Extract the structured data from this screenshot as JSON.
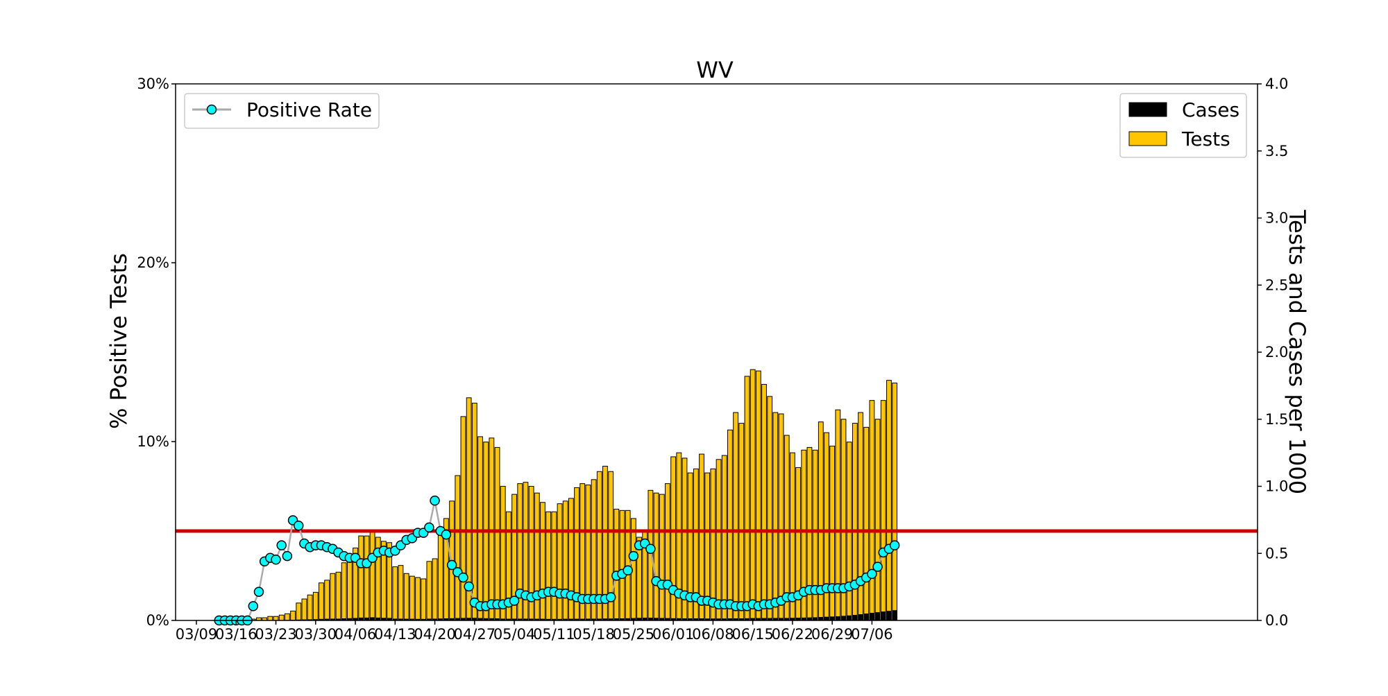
{
  "chart_data": {
    "type": "bar",
    "title": "WV",
    "ylabel_left": "% Positive Tests",
    "ylabel_right": "Tests and Cases per 1000",
    "ylim_left": [
      0,
      30
    ],
    "ylim_right": [
      0,
      4.0
    ],
    "yticks_left": [
      "0%",
      "10%",
      "20%",
      "30%"
    ],
    "yticks_right": [
      "0.0",
      "0.5",
      "1.0",
      "1.5",
      "2.0",
      "2.5",
      "3.0",
      "3.5",
      "4.0"
    ],
    "x_tick_labels": [
      "03/09",
      "03/16",
      "03/23",
      "03/30",
      "04/06",
      "04/13",
      "04/20",
      "04/27",
      "05/04",
      "05/11",
      "05/18",
      "05/25",
      "06/01",
      "06/08",
      "06/15",
      "06/22",
      "06/29",
      "07/06"
    ],
    "x_start_date": "03/09",
    "threshold_percent": 5,
    "threshold_color": "#cc0000",
    "legend_left": {
      "label": "Positive Rate",
      "placement": "upper left"
    },
    "legend_right": {
      "placement": "upper right",
      "entries": [
        "Cases",
        "Tests"
      ]
    },
    "grid": false,
    "series": [
      {
        "name": "Tests",
        "axis": "right",
        "kind": "bar",
        "color": "#ffc600",
        "values": [
          0,
          0,
          0,
          0,
          0,
          0,
          0,
          0,
          0,
          0.01,
          0.01,
          0.02,
          0.02,
          0.03,
          0.03,
          0.04,
          0.05,
          0.07,
          0.13,
          0.16,
          0.19,
          0.21,
          0.28,
          0.3,
          0.35,
          0.36,
          0.43,
          0.45,
          0.54,
          0.63,
          0.63,
          0.66,
          0.62,
          0.59,
          0.58,
          0.4,
          0.41,
          0.35,
          0.33,
          0.32,
          0.31,
          0.44,
          0.46,
          0.66,
          0.76,
          0.89,
          1.08,
          1.52,
          1.66,
          1.62,
          1.37,
          1.33,
          1.36,
          1.29,
          1.0,
          0.81,
          0.94,
          1.02,
          1.03,
          1.0,
          0.95,
          0.88,
          0.81,
          0.81,
          0.87,
          0.89,
          0.91,
          0.99,
          1.02,
          1.01,
          1.05,
          1.11,
          1.15,
          1.11,
          0.83,
          0.82,
          0.82,
          0.76,
          0.62,
          0.67,
          0.97,
          0.95,
          0.94,
          1.02,
          1.22,
          1.25,
          1.21,
          1.1,
          1.13,
          1.24,
          1.1,
          1.13,
          1.2,
          1.23,
          1.42,
          1.55,
          1.47,
          1.82,
          1.87,
          1.86,
          1.76,
          1.67,
          1.55,
          1.54,
          1.38,
          1.25,
          1.14,
          1.27,
          1.29,
          1.27,
          1.48,
          1.4,
          1.3,
          1.57,
          1.5,
          1.33,
          1.47,
          1.55,
          1.44,
          1.64,
          1.5,
          1.64,
          1.79,
          1.77
        ]
      },
      {
        "name": "Cases",
        "axis": "right",
        "kind": "bar",
        "color": "#000000",
        "values": [
          0,
          0,
          0,
          0,
          0,
          0,
          0,
          0,
          0,
          0,
          0,
          0,
          0,
          0,
          0,
          0,
          0.002,
          0.003,
          0.005,
          0.006,
          0.007,
          0.008,
          0.01,
          0.011,
          0.012,
          0.012,
          0.014,
          0.015,
          0.017,
          0.02,
          0.02,
          0.022,
          0.02,
          0.018,
          0.017,
          0.012,
          0.012,
          0.011,
          0.011,
          0.01,
          0.01,
          0.012,
          0.012,
          0.013,
          0.014,
          0.015,
          0.016,
          0.017,
          0.018,
          0.018,
          0.016,
          0.015,
          0.015,
          0.014,
          0.012,
          0.011,
          0.012,
          0.012,
          0.012,
          0.012,
          0.011,
          0.011,
          0.01,
          0.01,
          0.01,
          0.011,
          0.011,
          0.011,
          0.011,
          0.012,
          0.012,
          0.012,
          0.013,
          0.013,
          0.014,
          0.014,
          0.015,
          0.016,
          0.018,
          0.019,
          0.019,
          0.018,
          0.017,
          0.016,
          0.015,
          0.015,
          0.014,
          0.014,
          0.014,
          0.014,
          0.013,
          0.013,
          0.013,
          0.013,
          0.014,
          0.014,
          0.014,
          0.015,
          0.016,
          0.016,
          0.016,
          0.016,
          0.017,
          0.017,
          0.017,
          0.018,
          0.019,
          0.02,
          0.021,
          0.022,
          0.024,
          0.026,
          0.028,
          0.03,
          0.033,
          0.036,
          0.04,
          0.045,
          0.05,
          0.055,
          0.06,
          0.065,
          0.07,
          0.075
        ]
      },
      {
        "name": "Positive Rate",
        "axis": "left",
        "kind": "line",
        "color": "#00ffff",
        "line_color": "#aaaaaa",
        "values": [
          null,
          null,
          null,
          null,
          0,
          0,
          0,
          0,
          0,
          0,
          0.8,
          1.6,
          3.3,
          3.5,
          3.4,
          4.2,
          3.6,
          5.6,
          5.3,
          4.3,
          4.1,
          4.2,
          4.2,
          4.1,
          4.0,
          3.8,
          3.6,
          3.5,
          3.5,
          3.2,
          3.2,
          3.5,
          3.8,
          3.9,
          3.8,
          3.9,
          4.2,
          4.5,
          4.6,
          4.9,
          4.9,
          5.2,
          6.7,
          5.0,
          4.8,
          3.1,
          2.7,
          2.4,
          1.9,
          1.0,
          0.8,
          0.8,
          0.9,
          0.9,
          0.9,
          1.0,
          1.1,
          1.5,
          1.4,
          1.3,
          1.4,
          1.5,
          1.6,
          1.6,
          1.5,
          1.5,
          1.4,
          1.3,
          1.2,
          1.2,
          1.2,
          1.2,
          1.2,
          1.3,
          2.5,
          2.6,
          2.8,
          3.6,
          4.2,
          4.3,
          4.0,
          2.2,
          2.0,
          2.0,
          1.7,
          1.5,
          1.4,
          1.3,
          1.3,
          1.1,
          1.1,
          1.0,
          0.9,
          0.9,
          0.9,
          0.8,
          0.8,
          0.8,
          0.9,
          0.8,
          0.9,
          0.9,
          1.0,
          1.1,
          1.3,
          1.3,
          1.4,
          1.6,
          1.7,
          1.7,
          1.7,
          1.8,
          1.8,
          1.8,
          1.8,
          1.9,
          2.0,
          2.2,
          2.4,
          2.6,
          3.0,
          3.8,
          4.0,
          4.2
        ]
      }
    ]
  }
}
